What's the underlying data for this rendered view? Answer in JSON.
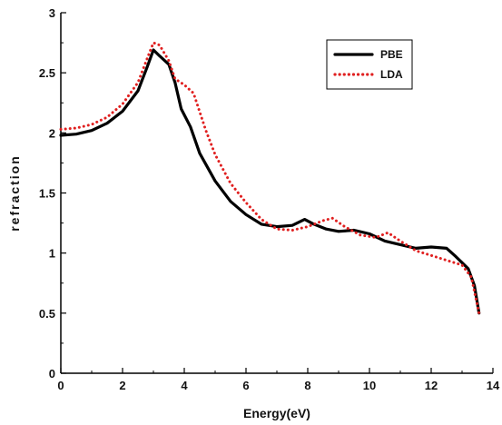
{
  "chart_data": {
    "type": "line",
    "title": "",
    "xlabel": "Energy(eV)",
    "ylabel": "refraction",
    "xlim": [
      0,
      14
    ],
    "ylim": [
      0,
      3
    ],
    "xticks": [
      0,
      2,
      4,
      6,
      8,
      10,
      12,
      14
    ],
    "yticks": [
      0,
      0.5,
      1,
      1.5,
      2,
      2.5,
      3
    ],
    "xtick_labels": [
      "0",
      "2",
      "4",
      "6",
      "8",
      "10",
      "12",
      "14"
    ],
    "ytick_labels": [
      "0",
      "0.5",
      "1",
      "1.5",
      "2",
      "2.5",
      "3"
    ],
    "grid": false,
    "legend_position": "top-right",
    "series": [
      {
        "name": "PBE",
        "color": "#000000",
        "style": "solid",
        "points": [
          [
            0,
            1.98
          ],
          [
            0.5,
            1.99
          ],
          [
            1.0,
            2.02
          ],
          [
            1.5,
            2.08
          ],
          [
            2.0,
            2.18
          ],
          [
            2.5,
            2.35
          ],
          [
            2.8,
            2.55
          ],
          [
            3.0,
            2.69
          ],
          [
            3.2,
            2.64
          ],
          [
            3.5,
            2.57
          ],
          [
            3.7,
            2.42
          ],
          [
            3.9,
            2.2
          ],
          [
            4.2,
            2.05
          ],
          [
            4.5,
            1.83
          ],
          [
            5.0,
            1.6
          ],
          [
            5.5,
            1.43
          ],
          [
            6.0,
            1.32
          ],
          [
            6.5,
            1.24
          ],
          [
            7.0,
            1.22
          ],
          [
            7.5,
            1.23
          ],
          [
            7.9,
            1.28
          ],
          [
            8.2,
            1.24
          ],
          [
            8.6,
            1.2
          ],
          [
            9.0,
            1.18
          ],
          [
            9.5,
            1.19
          ],
          [
            10.0,
            1.16
          ],
          [
            10.5,
            1.1
          ],
          [
            11.0,
            1.07
          ],
          [
            11.5,
            1.04
          ],
          [
            12.0,
            1.05
          ],
          [
            12.5,
            1.04
          ],
          [
            12.8,
            0.97
          ],
          [
            13.2,
            0.87
          ],
          [
            13.4,
            0.73
          ],
          [
            13.55,
            0.5
          ]
        ]
      },
      {
        "name": "LDA",
        "color": "#e02020",
        "style": "dotted",
        "points": [
          [
            0,
            2.03
          ],
          [
            0.5,
            2.04
          ],
          [
            1.0,
            2.07
          ],
          [
            1.5,
            2.13
          ],
          [
            2.0,
            2.24
          ],
          [
            2.5,
            2.42
          ],
          [
            2.8,
            2.62
          ],
          [
            3.0,
            2.75
          ],
          [
            3.2,
            2.73
          ],
          [
            3.5,
            2.6
          ],
          [
            3.7,
            2.45
          ],
          [
            4.0,
            2.4
          ],
          [
            4.3,
            2.33
          ],
          [
            4.7,
            2.02
          ],
          [
            5.0,
            1.82
          ],
          [
            5.5,
            1.58
          ],
          [
            6.0,
            1.42
          ],
          [
            6.5,
            1.28
          ],
          [
            7.0,
            1.2
          ],
          [
            7.5,
            1.19
          ],
          [
            8.0,
            1.22
          ],
          [
            8.5,
            1.27
          ],
          [
            8.8,
            1.29
          ],
          [
            9.2,
            1.22
          ],
          [
            9.7,
            1.15
          ],
          [
            10.2,
            1.13
          ],
          [
            10.6,
            1.17
          ],
          [
            11.0,
            1.1
          ],
          [
            11.5,
            1.02
          ],
          [
            12.0,
            0.98
          ],
          [
            12.5,
            0.94
          ],
          [
            13.0,
            0.9
          ],
          [
            13.3,
            0.8
          ],
          [
            13.55,
            0.5
          ]
        ]
      }
    ]
  }
}
